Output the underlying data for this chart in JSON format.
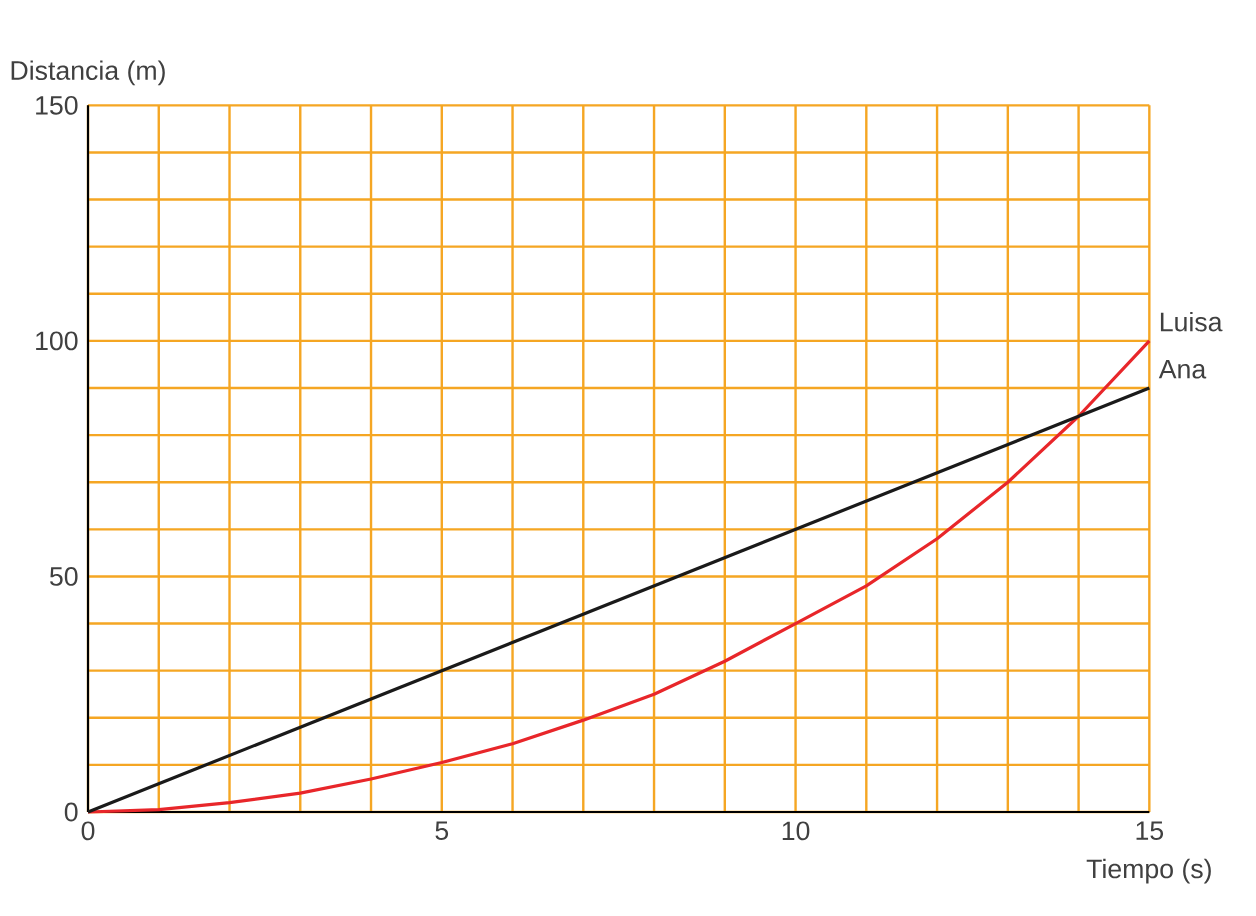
{
  "chart_data": {
    "type": "line",
    "xlabel": "Tiempo (s)",
    "ylabel": "Distancia (m)",
    "xlim": [
      0,
      15
    ],
    "ylim": [
      0,
      150
    ],
    "xticks": [
      0,
      {
        "value": 1,
        "label": null
      },
      {
        "value": 2,
        "label": null
      },
      {
        "value": 3,
        "label": null
      },
      {
        "value": 4,
        "label": null
      },
      5,
      {
        "value": 6,
        "label": null
      },
      {
        "value": 7,
        "label": null
      },
      {
        "value": 8,
        "label": null
      },
      {
        "value": 9,
        "label": null
      },
      10,
      {
        "value": 11,
        "label": null
      },
      {
        "value": 12,
        "label": null
      },
      {
        "value": 13,
        "label": null
      },
      {
        "value": 14,
        "label": null
      },
      15
    ],
    "yticks": [
      0,
      {
        "value": 10,
        "label": null
      },
      {
        "value": 20,
        "label": null
      },
      {
        "value": 30,
        "label": null
      },
      {
        "value": 40,
        "label": null
      },
      50,
      {
        "value": 60,
        "label": null
      },
      {
        "value": 70,
        "label": null
      },
      {
        "value": 80,
        "label": null
      },
      {
        "value": 90,
        "label": null
      },
      100,
      {
        "value": 110,
        "label": null
      },
      {
        "value": 120,
        "label": null
      },
      {
        "value": 130,
        "label": null
      },
      {
        "value": 140,
        "label": null
      },
      150
    ],
    "grid": true,
    "marker": "none",
    "line_style": "solid",
    "series": [
      {
        "name": "Luisa",
        "color": "#e8262a",
        "x": [
          0,
          1,
          2,
          3,
          4,
          5,
          6,
          7,
          8,
          9,
          10,
          11,
          12,
          13,
          14,
          15
        ],
        "values": [
          0,
          0.5,
          2,
          4,
          7,
          10.5,
          14.5,
          19.5,
          25,
          32,
          40,
          48,
          58,
          70,
          84,
          100
        ]
      },
      {
        "name": "Ana",
        "color": "#1a1a1a",
        "x": [
          0,
          15
        ],
        "values": [
          0,
          90
        ]
      }
    ]
  }
}
